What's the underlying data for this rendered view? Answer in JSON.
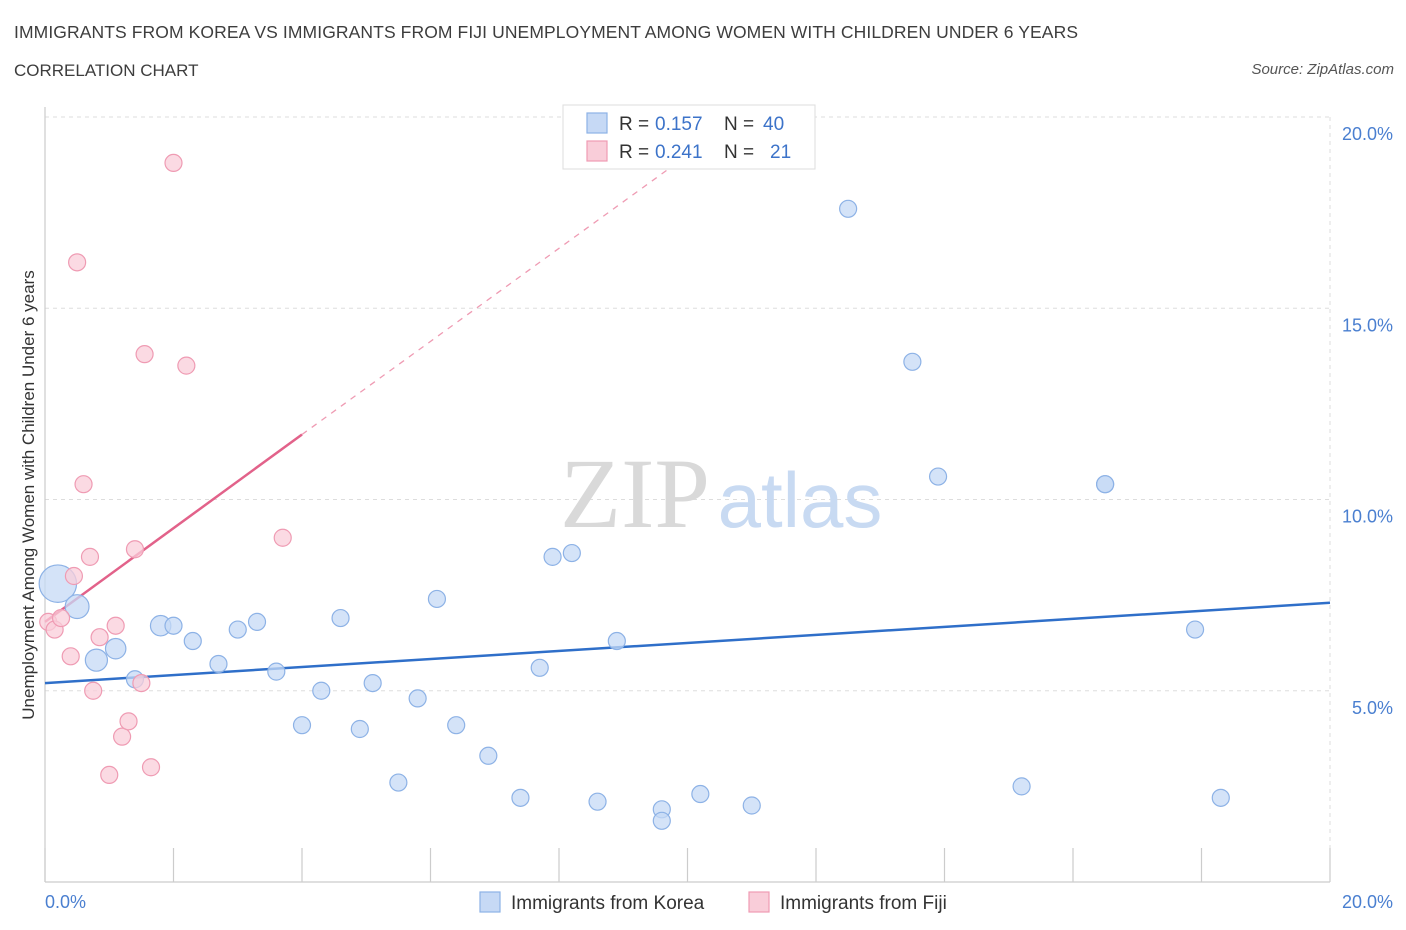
{
  "title": "IMMIGRANTS FROM KOREA VS IMMIGRANTS FROM FIJI UNEMPLOYMENT AMONG WOMEN WITH CHILDREN UNDER 6 YEARS",
  "subtitle": "CORRELATION CHART",
  "source": "Source: ZipAtlas.com",
  "watermark": {
    "zip": "ZIP",
    "atlas": "atlas"
  },
  "colors": {
    "korea_fill": "#c6d9f5",
    "korea_stroke": "#8db2e6",
    "korea_line": "#2f6fc9",
    "fiji_fill": "#f9cdd9",
    "fiji_stroke": "#ef9bb3",
    "fiji_line": "#e2628a",
    "grid": "#dddddd",
    "tick_label": "#4a7fd0"
  },
  "legend": {
    "rows": [
      {
        "r_label": "R =",
        "r_value": "0.157",
        "n_label": "N =",
        "n_value": "40"
      },
      {
        "r_label": "R =",
        "r_value": "0.241",
        "n_label": "N =",
        "n_value": "21"
      }
    ]
  },
  "chart_data": {
    "type": "scatter",
    "xlabel": "",
    "ylabel": "Unemployment Among Women with Children Under 6 years",
    "xlim": [
      0,
      20
    ],
    "ylim": [
      0,
      20
    ],
    "x_tick_labels": [
      "0.0%",
      "20.0%"
    ],
    "y_ticks": [
      5,
      10,
      15,
      20
    ],
    "y_tick_labels": [
      "5.0%",
      "10.0%",
      "15.0%",
      "20.0%"
    ],
    "series": [
      {
        "name": "Immigrants from Korea",
        "color": "#c6d9f5",
        "trend": {
          "x": [
            0,
            20
          ],
          "y": [
            5.2,
            7.3
          ]
        },
        "points": [
          {
            "x": 0.2,
            "y": 7.8,
            "s": 2.2
          },
          {
            "x": 0.5,
            "y": 7.2,
            "s": 1.4
          },
          {
            "x": 0.8,
            "y": 5.8,
            "s": 1.3
          },
          {
            "x": 1.1,
            "y": 6.1,
            "s": 1.2
          },
          {
            "x": 1.4,
            "y": 5.3,
            "s": 1.0
          },
          {
            "x": 1.8,
            "y": 6.7,
            "s": 1.2
          },
          {
            "x": 2.0,
            "y": 6.7,
            "s": 1.0
          },
          {
            "x": 2.3,
            "y": 6.3,
            "s": 1.0
          },
          {
            "x": 2.7,
            "y": 5.7,
            "s": 1.0
          },
          {
            "x": 3.0,
            "y": 6.6,
            "s": 1.0
          },
          {
            "x": 3.3,
            "y": 6.8,
            "s": 1.0
          },
          {
            "x": 3.6,
            "y": 5.5,
            "s": 1.0
          },
          {
            "x": 4.0,
            "y": 4.1,
            "s": 1.0
          },
          {
            "x": 4.3,
            "y": 5.0,
            "s": 1.0
          },
          {
            "x": 4.6,
            "y": 6.9,
            "s": 1.0
          },
          {
            "x": 4.9,
            "y": 4.0,
            "s": 1.0
          },
          {
            "x": 5.1,
            "y": 5.2,
            "s": 1.0
          },
          {
            "x": 5.5,
            "y": 2.6,
            "s": 1.0
          },
          {
            "x": 5.8,
            "y": 4.8,
            "s": 1.0
          },
          {
            "x": 6.1,
            "y": 7.4,
            "s": 1.0
          },
          {
            "x": 6.4,
            "y": 4.1,
            "s": 1.0
          },
          {
            "x": 6.9,
            "y": 3.3,
            "s": 1.0
          },
          {
            "x": 7.4,
            "y": 2.2,
            "s": 1.0
          },
          {
            "x": 7.7,
            "y": 5.6,
            "s": 1.0
          },
          {
            "x": 7.9,
            "y": 8.5,
            "s": 1.0
          },
          {
            "x": 8.2,
            "y": 8.6,
            "s": 1.0
          },
          {
            "x": 8.6,
            "y": 2.1,
            "s": 1.0
          },
          {
            "x": 8.9,
            "y": 6.3,
            "s": 1.0
          },
          {
            "x": 9.6,
            "y": 1.9,
            "s": 1.0
          },
          {
            "x": 9.6,
            "y": 1.6,
            "s": 1.0
          },
          {
            "x": 10.2,
            "y": 2.3,
            "s": 1.0
          },
          {
            "x": 11.0,
            "y": 2.0,
            "s": 1.0
          },
          {
            "x": 12.5,
            "y": 17.6,
            "s": 1.0
          },
          {
            "x": 13.5,
            "y": 13.6,
            "s": 1.0
          },
          {
            "x": 13.9,
            "y": 10.6,
            "s": 1.0
          },
          {
            "x": 15.2,
            "y": 2.5,
            "s": 1.0
          },
          {
            "x": 16.5,
            "y": 10.4,
            "s": 1.0
          },
          {
            "x": 16.5,
            "y": 10.4,
            "s": 1.0
          },
          {
            "x": 17.9,
            "y": 6.6,
            "s": 1.0
          },
          {
            "x": 18.3,
            "y": 2.2,
            "s": 1.0
          }
        ]
      },
      {
        "name": "Immigrants from Fiji",
        "color": "#f9cdd9",
        "trend": {
          "x": [
            0,
            4.0
          ],
          "y": [
            6.8,
            11.7
          ]
        },
        "trend_extension": {
          "x": [
            4.0,
            10.0
          ],
          "y": [
            11.7,
            19.0
          ]
        },
        "points": [
          {
            "x": 0.05,
            "y": 6.8,
            "s": 1.0
          },
          {
            "x": 0.15,
            "y": 6.6,
            "s": 1.0
          },
          {
            "x": 0.25,
            "y": 6.9,
            "s": 1.0
          },
          {
            "x": 0.4,
            "y": 5.9,
            "s": 1.0
          },
          {
            "x": 0.45,
            "y": 8.0,
            "s": 1.0
          },
          {
            "x": 0.5,
            "y": 16.2,
            "s": 1.0
          },
          {
            "x": 0.6,
            "y": 10.4,
            "s": 1.0
          },
          {
            "x": 0.7,
            "y": 8.5,
            "s": 1.0
          },
          {
            "x": 0.75,
            "y": 5.0,
            "s": 1.0
          },
          {
            "x": 0.85,
            "y": 6.4,
            "s": 1.0
          },
          {
            "x": 1.0,
            "y": 2.8,
            "s": 1.0
          },
          {
            "x": 1.1,
            "y": 6.7,
            "s": 1.0
          },
          {
            "x": 1.2,
            "y": 3.8,
            "s": 1.0
          },
          {
            "x": 1.3,
            "y": 4.2,
            "s": 1.0
          },
          {
            "x": 1.4,
            "y": 8.7,
            "s": 1.0
          },
          {
            "x": 1.5,
            "y": 5.2,
            "s": 1.0
          },
          {
            "x": 1.55,
            "y": 13.8,
            "s": 1.0
          },
          {
            "x": 1.65,
            "y": 3.0,
            "s": 1.0
          },
          {
            "x": 2.0,
            "y": 18.8,
            "s": 1.0
          },
          {
            "x": 2.2,
            "y": 13.5,
            "s": 1.0
          },
          {
            "x": 3.7,
            "y": 9.0,
            "s": 1.0
          }
        ]
      }
    ],
    "legend_entries": [
      "Immigrants from Korea",
      "Immigrants from Fiji"
    ],
    "legend_position": "bottom-center"
  }
}
